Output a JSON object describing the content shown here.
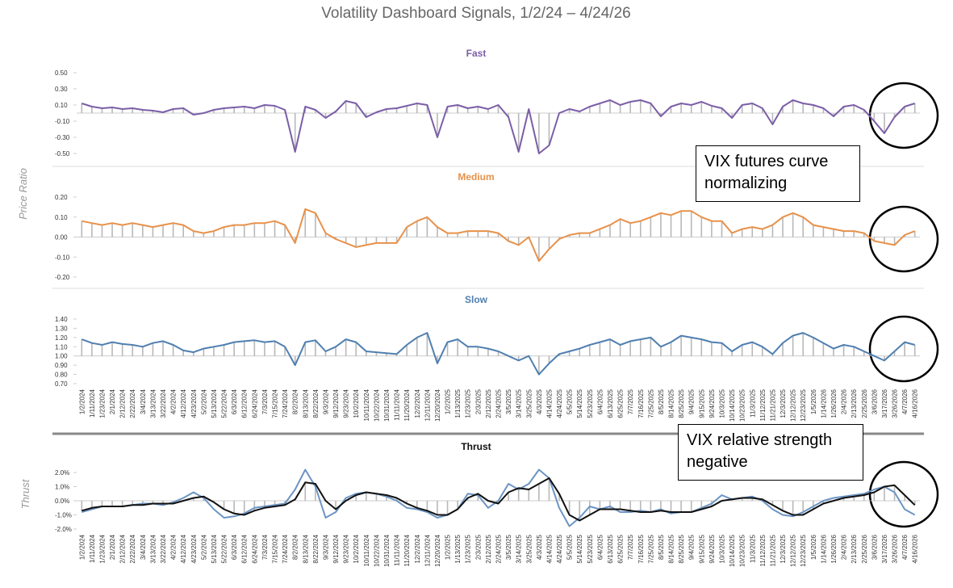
{
  "title": "Volatility Dashboard Signals, 1/2/24 – 4/24/26",
  "ylabel": "Price Ratio",
  "annotations": [
    "VIX futures curve normalizing",
    "VIX relative strength negative"
  ],
  "chart_data": [
    {
      "type": "line",
      "title": "Fast",
      "ylim": [
        -0.5,
        0.5
      ],
      "yticks": [
        {
          "value": 0.5,
          "label": "0.50"
        },
        {
          "value": 0.3,
          "label": "0.30"
        },
        {
          "value": 0.1,
          "label": "0.10"
        },
        {
          "value": -0.1,
          "label": "-0.10"
        },
        {
          "value": -0.3,
          "label": "-0.30"
        },
        {
          "value": -0.5,
          "label": "-0.50"
        }
      ],
      "series": [
        {
          "color": "#7b5ea7",
          "values": [
            0.12,
            0.08,
            0.06,
            0.07,
            0.05,
            0.06,
            0.04,
            0.03,
            0.01,
            0.05,
            0.06,
            -0.02,
            0.0,
            0.04,
            0.06,
            0.07,
            0.08,
            0.06,
            0.1,
            0.09,
            0.04,
            -0.48,
            0.08,
            0.04,
            -0.06,
            0.02,
            0.15,
            0.12,
            -0.05,
            0.01,
            0.05,
            0.06,
            0.09,
            0.12,
            0.1,
            -0.3,
            0.08,
            0.1,
            0.06,
            0.08,
            0.05,
            0.1,
            -0.05,
            -0.48,
            0.05,
            -0.5,
            -0.4,
            0.0,
            0.05,
            0.02,
            0.08,
            0.12,
            0.16,
            0.1,
            0.14,
            0.16,
            0.12,
            -0.04,
            0.08,
            0.12,
            0.1,
            0.14,
            0.09,
            0.06,
            -0.06,
            0.1,
            0.12,
            0.06,
            -0.14,
            0.08,
            0.16,
            0.12,
            0.1,
            0.06,
            -0.04,
            0.08,
            0.1,
            0.04,
            -0.1,
            -0.25,
            -0.05,
            0.08,
            0.12
          ]
        }
      ]
    },
    {
      "type": "line",
      "title": "Medium",
      "ylim": [
        -0.2,
        0.2
      ],
      "yticks": [
        {
          "value": 0.2,
          "label": "0.20"
        },
        {
          "value": 0.1,
          "label": "0.10"
        },
        {
          "value": 0,
          "label": "0.00"
        },
        {
          "value": -0.1,
          "label": "-0.10"
        },
        {
          "value": -0.2,
          "label": "-0.20"
        }
      ],
      "series": [
        {
          "color": "#e8914a",
          "values": [
            0.08,
            0.07,
            0.06,
            0.07,
            0.06,
            0.07,
            0.06,
            0.05,
            0.06,
            0.07,
            0.06,
            0.03,
            0.02,
            0.03,
            0.05,
            0.06,
            0.06,
            0.07,
            0.07,
            0.08,
            0.06,
            -0.03,
            0.14,
            0.12,
            0.02,
            -0.01,
            -0.03,
            -0.05,
            -0.04,
            -0.03,
            -0.03,
            -0.03,
            0.05,
            0.08,
            0.1,
            0.05,
            0.02,
            0.02,
            0.03,
            0.03,
            0.03,
            0.02,
            -0.02,
            -0.04,
            0.0,
            -0.12,
            -0.06,
            -0.01,
            0.01,
            0.02,
            0.02,
            0.04,
            0.06,
            0.09,
            0.07,
            0.08,
            0.1,
            0.12,
            0.11,
            0.13,
            0.13,
            0.1,
            0.08,
            0.08,
            0.02,
            0.04,
            0.05,
            0.04,
            0.06,
            0.1,
            0.12,
            0.1,
            0.06,
            0.05,
            0.04,
            0.03,
            0.03,
            0.02,
            -0.02,
            -0.03,
            -0.04,
            0.01,
            0.03
          ]
        }
      ]
    },
    {
      "type": "line",
      "title": "Slow",
      "ylim": [
        0.7,
        1.4
      ],
      "bar_base": 1,
      "yticks": [
        {
          "value": 1.4,
          "label": "1.40"
        },
        {
          "value": 1.3,
          "label": "1.30"
        },
        {
          "value": 1.2,
          "label": "1.20"
        },
        {
          "value": 1.1,
          "label": "1.10"
        },
        {
          "value": 1.0,
          "label": "1.00"
        },
        {
          "value": 0.9,
          "label": "0.90"
        },
        {
          "value": 0.8,
          "label": "0.80"
        },
        {
          "value": 0.7,
          "label": "0.70"
        }
      ],
      "categories": [
        "1/2/2024",
        "1/11/2024",
        "1/23/2024",
        "2/1/2024",
        "2/12/2024",
        "2/22/2024",
        "3/4/2024",
        "3/13/2024",
        "3/22/2024",
        "4/2/2024",
        "4/12/2024",
        "4/23/2024",
        "5/2/2024",
        "5/13/2024",
        "5/22/2024",
        "6/3/2024",
        "6/12/2024",
        "6/24/2024",
        "7/3/2024",
        "7/15/2024",
        "7/24/2024",
        "8/2/2024",
        "8/13/2024",
        "8/22/2024",
        "9/3/2024",
        "9/12/2024",
        "9/23/2024",
        "10/2/2024",
        "10/11/2024",
        "10/22/2024",
        "10/31/2024",
        "11/11/2024",
        "11/20/2024",
        "12/2/2024",
        "12/11/2024",
        "12/20/2024",
        "1/2/2025",
        "1/13/2025",
        "1/23/2025",
        "2/3/2025",
        "2/12/2025",
        "2/24/2025",
        "3/5/2025",
        "3/14/2025",
        "3/25/2025",
        "4/3/2025",
        "4/14/2025",
        "4/24/2025",
        "5/5/2025",
        "5/14/2025",
        "5/23/2025",
        "6/4/2025",
        "6/13/2025",
        "6/25/2025",
        "7/7/2025",
        "7/16/2025",
        "7/25/2025",
        "8/5/2025",
        "8/14/2025",
        "8/25/2025",
        "9/4/2025",
        "9/15/2025",
        "9/24/2025",
        "10/3/2025",
        "10/14/2025",
        "10/23/2025",
        "11/3/2025",
        "11/12/2025",
        "11/21/2025",
        "12/3/2025",
        "12/12/2025",
        "12/23/2025",
        "1/5/2026",
        "1/14/2026",
        "1/26/2026",
        "2/4/2026",
        "2/13/2026",
        "2/25/2026",
        "3/6/2026",
        "3/17/2026",
        "3/26/2026",
        "4/7/2026",
        "4/16/2026"
      ],
      "series": [
        {
          "color": "#4f7fb0",
          "values": [
            1.18,
            1.14,
            1.12,
            1.15,
            1.13,
            1.12,
            1.1,
            1.14,
            1.16,
            1.12,
            1.06,
            1.04,
            1.08,
            1.1,
            1.12,
            1.15,
            1.16,
            1.17,
            1.15,
            1.16,
            1.1,
            0.9,
            1.15,
            1.17,
            1.05,
            1.1,
            1.18,
            1.15,
            1.05,
            1.04,
            1.03,
            1.02,
            1.12,
            1.2,
            1.25,
            0.92,
            1.15,
            1.18,
            1.1,
            1.1,
            1.08,
            1.05,
            1.0,
            0.95,
            1.0,
            0.8,
            0.92,
            1.02,
            1.05,
            1.08,
            1.12,
            1.15,
            1.18,
            1.12,
            1.16,
            1.18,
            1.2,
            1.1,
            1.15,
            1.22,
            1.2,
            1.18,
            1.15,
            1.14,
            1.05,
            1.12,
            1.15,
            1.1,
            1.02,
            1.14,
            1.22,
            1.25,
            1.2,
            1.14,
            1.08,
            1.12,
            1.1,
            1.05,
            1.0,
            0.95,
            1.05,
            1.15,
            1.12
          ]
        }
      ]
    },
    {
      "type": "line",
      "title": "Thrust",
      "ylabel": "Thrust",
      "ylim": [
        -2.0,
        2.4
      ],
      "yticks": [
        {
          "value": 2.0,
          "label": "2.0%"
        },
        {
          "value": 1.0,
          "label": "1.0%"
        },
        {
          "value": 0,
          "label": "0.0%"
        },
        {
          "value": -1.0,
          "label": "-1.0%"
        },
        {
          "value": -2.0,
          "label": "-2.0%"
        }
      ],
      "categories": [
        "1/2/2024",
        "1/11/2024",
        "1/23/2024",
        "2/1/2024",
        "2/12/2024",
        "2/22/2024",
        "3/4/2024",
        "3/13/2024",
        "3/22/2024",
        "4/2/2024",
        "4/12/2024",
        "4/23/2024",
        "5/2/2024",
        "5/13/2024",
        "5/22/2024",
        "6/3/2024",
        "6/12/2024",
        "6/24/2024",
        "7/3/2024",
        "7/15/2024",
        "7/24/2024",
        "8/2/2024",
        "8/13/2024",
        "8/22/2024",
        "9/3/2024",
        "9/12/2024",
        "9/23/2024",
        "10/2/2024",
        "10/11/2024",
        "10/22/2024",
        "10/31/2024",
        "11/11/2024",
        "11/20/2024",
        "12/2/2024",
        "12/11/2024",
        "12/20/2024",
        "1/2/2025",
        "1/13/2025",
        "1/23/2025",
        "2/3/2025",
        "2/12/2025",
        "2/24/2025",
        "3/5/2025",
        "3/14/2025",
        "3/25/2025",
        "4/3/2025",
        "4/14/2025",
        "4/24/2025",
        "5/5/2025",
        "5/14/2025",
        "5/23/2025",
        "6/4/2025",
        "6/13/2025",
        "6/25/2025",
        "7/7/2025",
        "7/16/2025",
        "7/25/2025",
        "8/5/2025",
        "8/14/2025",
        "8/25/2025",
        "9/4/2025",
        "9/15/2025",
        "9/24/2025",
        "10/3/2025",
        "10/14/2025",
        "10/23/2025",
        "11/3/2025",
        "11/12/2025",
        "11/21/2025",
        "12/3/2025",
        "12/12/2025",
        "12/23/2025",
        "1/5/2026",
        "1/14/2026",
        "1/26/2026",
        "2/4/2026",
        "2/13/2026",
        "2/25/2026",
        "3/6/2026",
        "3/17/2026",
        "3/26/2026",
        "4/7/2026",
        "4/16/2026"
      ],
      "series": [
        {
          "color": "#6c95c4",
          "values": [
            -0.8,
            -0.6,
            -0.4,
            -0.4,
            -0.4,
            -0.3,
            -0.2,
            -0.2,
            -0.3,
            -0.1,
            0.2,
            0.6,
            0.2,
            -0.6,
            -1.2,
            -1.1,
            -0.9,
            -0.5,
            -0.4,
            -0.3,
            -0.2,
            0.8,
            2.2,
            1.0,
            -1.2,
            -0.8,
            0.2,
            0.5,
            0.6,
            0.5,
            0.3,
            0.0,
            -0.5,
            -0.6,
            -0.8,
            -1.2,
            -1.0,
            -0.6,
            0.5,
            0.4,
            -0.5,
            0.0,
            1.2,
            0.8,
            1.2,
            2.2,
            1.6,
            -0.5,
            -1.8,
            -1.2,
            -0.4,
            -0.6,
            -0.4,
            -0.8,
            -0.8,
            -0.7,
            -0.8,
            -0.6,
            -0.9,
            -0.8,
            -0.8,
            -0.5,
            -0.2,
            0.4,
            0.1,
            0.2,
            0.3,
            0.0,
            -0.6,
            -1.0,
            -1.1,
            -0.8,
            -0.4,
            0.0,
            0.2,
            0.3,
            0.4,
            0.5,
            0.8,
            1.0,
            0.6,
            -0.6,
            -1.0
          ]
        },
        {
          "color": "#111111",
          "values": [
            -0.7,
            -0.5,
            -0.4,
            -0.4,
            -0.4,
            -0.3,
            -0.3,
            -0.2,
            -0.2,
            -0.2,
            0.0,
            0.2,
            0.3,
            -0.1,
            -0.6,
            -0.9,
            -1.0,
            -0.7,
            -0.5,
            -0.4,
            -0.3,
            0.1,
            1.3,
            1.2,
            0.0,
            -0.6,
            0.0,
            0.4,
            0.6,
            0.5,
            0.4,
            0.2,
            -0.2,
            -0.5,
            -0.7,
            -1.0,
            -1.0,
            -0.6,
            0.2,
            0.5,
            0.0,
            -0.2,
            0.6,
            0.9,
            0.8,
            1.2,
            1.6,
            0.5,
            -1.0,
            -1.4,
            -1.0,
            -0.6,
            -0.6,
            -0.6,
            -0.7,
            -0.8,
            -0.8,
            -0.7,
            -0.8,
            -0.8,
            -0.8,
            -0.6,
            -0.4,
            0.0,
            0.1,
            0.2,
            0.2,
            0.1,
            -0.3,
            -0.7,
            -1.0,
            -1.0,
            -0.6,
            -0.2,
            0.0,
            0.2,
            0.3,
            0.4,
            0.6,
            1.0,
            1.1,
            0.4,
            -0.3
          ]
        }
      ]
    }
  ]
}
